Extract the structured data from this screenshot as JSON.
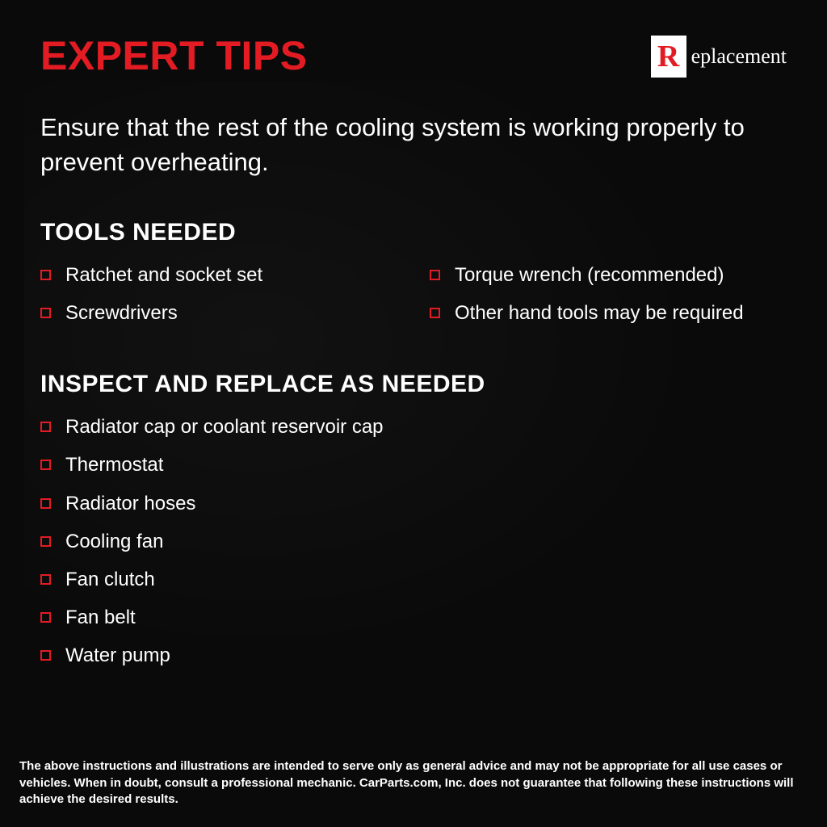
{
  "colors": {
    "accent_red": "#e31b23",
    "text_white": "#ffffff",
    "background": "#0a0a0a",
    "bullet_border": "#e31b23"
  },
  "header": {
    "title": "EXPERT TIPS",
    "logo_r": "R",
    "logo_rest": "eplacement"
  },
  "intro": "Ensure that the rest of the cooling system is working properly to prevent overheating.",
  "sections": {
    "tools": {
      "heading": "TOOLS NEEDED",
      "col1": [
        "Ratchet and socket set",
        "Screwdrivers"
      ],
      "col2": [
        "Torque wrench (recommended)",
        "Other hand tools may be required"
      ]
    },
    "inspect": {
      "heading": "INSPECT AND REPLACE AS NEEDED",
      "items": [
        "Radiator cap or coolant reservoir cap",
        "Thermostat",
        "Radiator hoses",
        "Cooling fan",
        "Fan clutch",
        "Fan belt",
        "Water pump"
      ]
    }
  },
  "disclaimer": "The above instructions and illustrations are intended to serve only as general advice and may not be appropriate for all use cases or vehicles. When in doubt, consult a professional mechanic. CarParts.com, Inc. does not guarantee that following these instructions will achieve the desired results.",
  "typography": {
    "title_fontsize": 50,
    "intro_fontsize": 31,
    "heading_fontsize": 30,
    "item_fontsize": 24,
    "disclaimer_fontsize": 15
  }
}
